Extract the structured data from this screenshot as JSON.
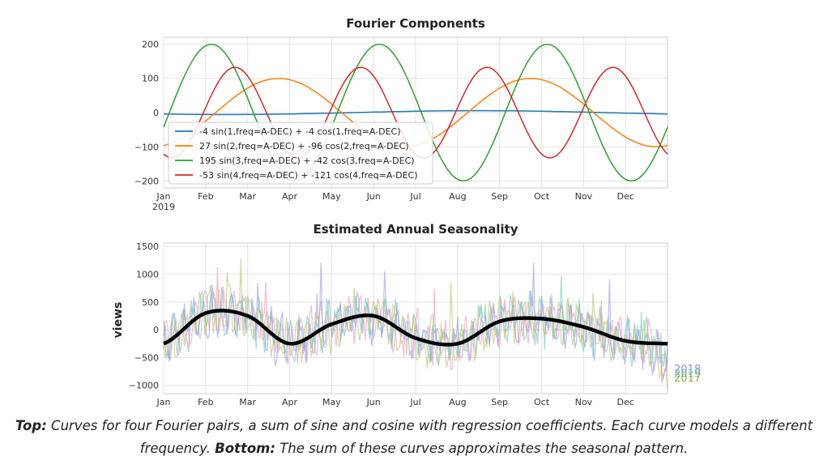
{
  "chart_data": [
    {
      "type": "line",
      "title": "Fourier Components",
      "x_axis": {
        "range": [
          "2019-01-01",
          "2019-12-31"
        ],
        "tick_labels": [
          "Jan",
          "Feb",
          "Mar",
          "Apr",
          "May",
          "Jun",
          "Jul",
          "Aug",
          "Sep",
          "Oct",
          "Nov",
          "Dec"
        ],
        "year_label": "2019"
      },
      "y_axis": {
        "range": [
          -220,
          220
        ],
        "ticks": [
          200,
          100,
          0,
          -100,
          -200
        ],
        "tick_labels": [
          "200",
          "100",
          "0",
          "−100",
          "−200"
        ]
      },
      "grid": true,
      "legend_position": "lower-left",
      "series": [
        {
          "name": "-4 sin(1,freq=A-DEC) + -4 cos(1,freq=A-DEC)",
          "color": "#1f77b4",
          "order": 1,
          "sin": -4,
          "cos": -4
        },
        {
          "name": "27 sin(2,freq=A-DEC) + -96 cos(2,freq=A-DEC)",
          "color": "#ff7f0e",
          "order": 2,
          "sin": 27,
          "cos": -96
        },
        {
          "name": "195 sin(3,freq=A-DEC) + -42 cos(3,freq=A-DEC)",
          "color": "#2ca02c",
          "order": 3,
          "sin": 195,
          "cos": -42
        },
        {
          "name": "-53 sin(4,freq=A-DEC) + -121 cos(4,freq=A-DEC)",
          "color": "#d62728",
          "order": 4,
          "sin": -53,
          "cos": -121
        }
      ]
    },
    {
      "type": "line",
      "title": "Estimated Annual Seasonality",
      "ylabel": "views",
      "x_axis": {
        "tick_labels": [
          "Jan",
          "Feb",
          "Mar",
          "Apr",
          "May",
          "Jun",
          "Jul",
          "Aug",
          "Sep",
          "Oct",
          "Nov",
          "Dec"
        ]
      },
      "y_axis": {
        "range": [
          -1150,
          1560
        ],
        "ticks": [
          1500,
          1000,
          500,
          0,
          -500,
          -1000
        ],
        "tick_labels": [
          "1500",
          "1000",
          "500",
          "0",
          "−500",
          "−1000"
        ]
      },
      "grid": true,
      "seasonal_fit": {
        "color": "#000000",
        "description": "sum of the four Fourier components",
        "month_values": [
          -250,
          300,
          250,
          -250,
          100,
          250,
          -150,
          -250,
          150,
          200,
          50,
          -200,
          -250
        ]
      },
      "year_series": [
        {
          "label": "2018",
          "color": "#8c8fe0"
        },
        {
          "label": "2019",
          "color": "#5fc4c0"
        },
        {
          "label": "2017",
          "color": "#9aaa3a"
        }
      ],
      "noise_colors": [
        "#f08cb4",
        "#8c8fe0",
        "#5fc4c0",
        "#b4bc5a"
      ]
    }
  ],
  "caption": {
    "top_label": "Top:",
    "top_text": " Curves for four Fourier pairs, a sum of sine and cosine with regression coefficients. Each curve models a different frequency.",
    "bottom_label": "Bottom:",
    "bottom_text": " The sum of these curves approximates the seasonal pattern."
  }
}
